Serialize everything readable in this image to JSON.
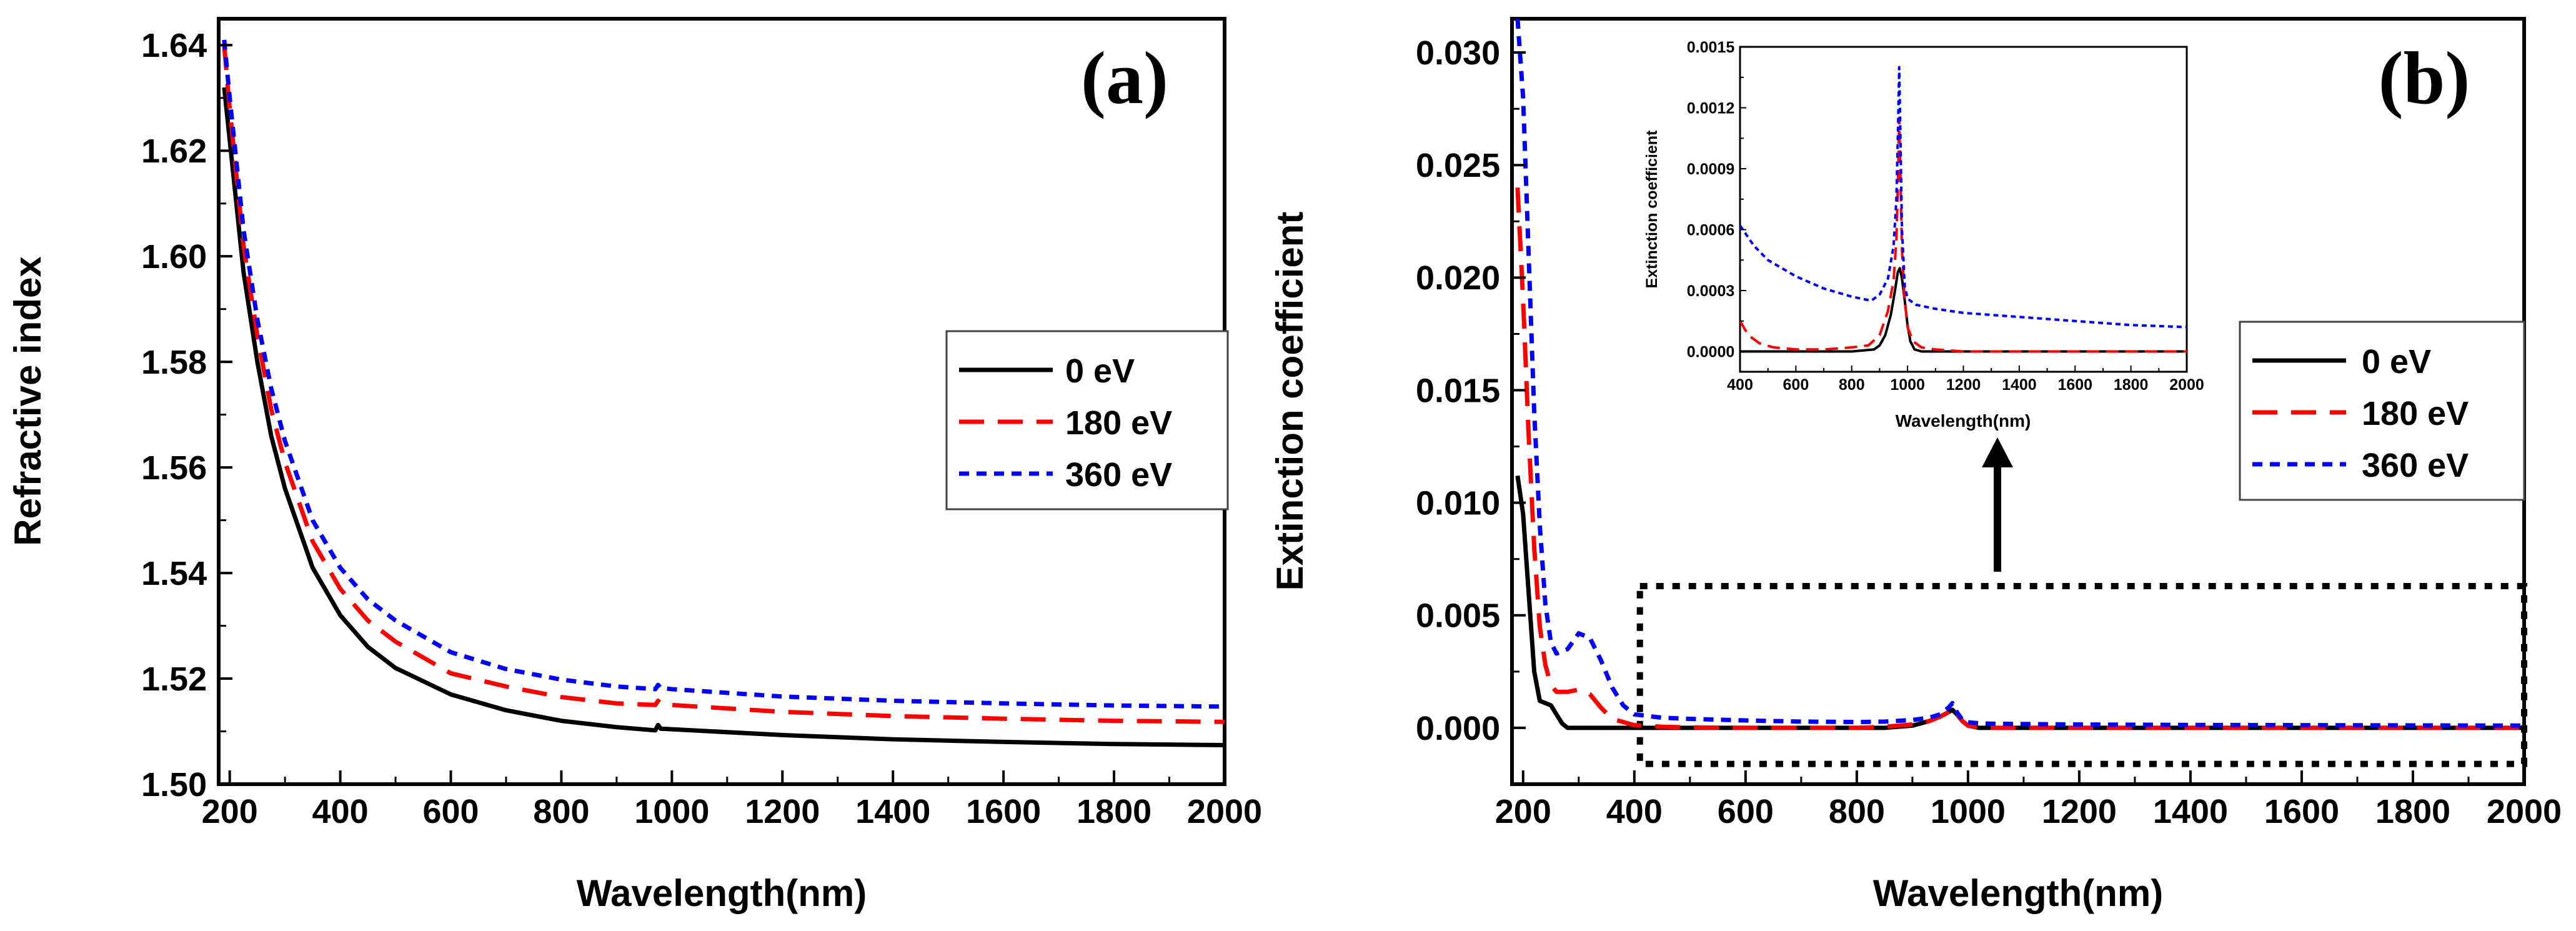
{
  "chart_data": [
    {
      "id": "a",
      "type": "line",
      "panel_label": "(a)",
      "title": "",
      "xlabel": "Wavelength(nm)",
      "ylabel": "Refractive index",
      "xlim": [
        180,
        2000
      ],
      "ylim": [
        1.5,
        1.645
      ],
      "xticks": [
        200,
        400,
        600,
        800,
        1000,
        1200,
        1400,
        1600,
        1800,
        2000
      ],
      "xtick_labels": [
        "200",
        "400",
        "600",
        "800",
        "1000",
        "1200",
        "1400",
        "1600",
        "1800",
        "2000"
      ],
      "yticks": [
        1.5,
        1.52,
        1.54,
        1.56,
        1.58,
        1.6,
        1.62,
        1.64
      ],
      "ytick_labels": [
        "1.50",
        "1.52",
        "1.54",
        "1.56",
        "1.58",
        "1.60",
        "1.62",
        "1.64"
      ],
      "grid": false,
      "legend_position": "right",
      "series": [
        {
          "name": "0 eV",
          "color": "#000000",
          "dash": "solid",
          "x": [
            190,
            200,
            225,
            250,
            275,
            300,
            350,
            400,
            450,
            500,
            600,
            700,
            800,
            900,
            970,
            975,
            980,
            1000,
            1200,
            1400,
            1600,
            1800,
            2000
          ],
          "y": [
            1.632,
            1.622,
            1.597,
            1.58,
            1.566,
            1.556,
            1.541,
            1.532,
            1.526,
            1.522,
            1.517,
            1.514,
            1.512,
            1.5108,
            1.5102,
            1.5112,
            1.5105,
            1.5104,
            1.5093,
            1.5085,
            1.508,
            1.5076,
            1.5074
          ]
        },
        {
          "name": "180 eV",
          "color": "#ff0000",
          "dash": "long-dash",
          "x": [
            190,
            200,
            225,
            250,
            275,
            300,
            350,
            400,
            450,
            500,
            600,
            700,
            800,
            900,
            970,
            975,
            980,
            1000,
            1200,
            1400,
            1600,
            1800,
            2000
          ],
          "y": [
            1.64,
            1.628,
            1.602,
            1.585,
            1.571,
            1.561,
            1.546,
            1.537,
            1.531,
            1.527,
            1.521,
            1.5185,
            1.5165,
            1.5153,
            1.515,
            1.5158,
            1.5152,
            1.515,
            1.5137,
            1.5129,
            1.5124,
            1.512,
            1.5118
          ]
        },
        {
          "name": "360 eV",
          "color": "#0000ff",
          "dash": "short-dash",
          "x": [
            190,
            200,
            225,
            250,
            275,
            300,
            350,
            400,
            450,
            500,
            600,
            700,
            800,
            900,
            970,
            975,
            980,
            1000,
            1200,
            1400,
            1600,
            1800,
            2000
          ],
          "y": [
            1.641,
            1.63,
            1.605,
            1.588,
            1.575,
            1.565,
            1.55,
            1.541,
            1.535,
            1.531,
            1.525,
            1.5218,
            1.5198,
            1.5185,
            1.518,
            1.5188,
            1.5182,
            1.518,
            1.5166,
            1.5158,
            1.5153,
            1.5149,
            1.5147
          ]
        }
      ]
    },
    {
      "id": "b",
      "type": "line",
      "panel_label": "(b)",
      "title": "",
      "xlabel": "Wavelength(nm)",
      "ylabel": "Extinction coefficient",
      "xlim": [
        180,
        2000
      ],
      "ylim": [
        -0.0025,
        0.0315
      ],
      "xticks": [
        200,
        400,
        600,
        800,
        1000,
        1200,
        1400,
        1600,
        1800,
        2000
      ],
      "xtick_labels": [
        "200",
        "400",
        "600",
        "800",
        "1000",
        "1200",
        "1400",
        "1600",
        "1800",
        "2000"
      ],
      "yticks": [
        0.0,
        0.005,
        0.01,
        0.015,
        0.02,
        0.025,
        0.03
      ],
      "ytick_labels": [
        "0.000",
        "0.005",
        "0.010",
        "0.015",
        "0.020",
        "0.025",
        "0.030"
      ],
      "grid": false,
      "legend_position": "right",
      "zoom_region": {
        "x": [
          410,
          2000
        ],
        "y": [
          -0.0016,
          0.0063
        ]
      },
      "series": [
        {
          "name": "0 eV",
          "color": "#000000",
          "dash": "solid",
          "x": [
            190,
            200,
            210,
            220,
            230,
            240,
            250,
            260,
            270,
            280,
            300,
            350,
            400,
            500,
            600,
            700,
            800,
            850,
            900,
            930,
            950,
            965,
            972,
            980,
            990,
            1000,
            1020,
            1050,
            1100,
            1200,
            1400,
            1600,
            1800,
            2000
          ],
          "y": [
            0.0112,
            0.0095,
            0.006,
            0.0025,
            0.0012,
            0.0011,
            0.001,
            0.0006,
            0.0002,
            0.0,
            0.0,
            0.0,
            0.0,
            0.0,
            0.0,
            0.0,
            0.0,
            0.0,
            0.0001,
            0.0003,
            0.0005,
            0.0007,
            0.0008,
            0.0006,
            0.0003,
            0.0001,
            0.0,
            0.0,
            0.0,
            0.0,
            0.0,
            0.0,
            0.0,
            0.0
          ]
        },
        {
          "name": "180 eV",
          "color": "#ff0000",
          "dash": "long-dash",
          "x": [
            190,
            200,
            210,
            220,
            230,
            240,
            250,
            260,
            280,
            300,
            320,
            340,
            360,
            400,
            450,
            500,
            600,
            700,
            800,
            850,
            900,
            930,
            950,
            965,
            972,
            980,
            990,
            1000,
            1020,
            1050,
            1100,
            1200,
            1400,
            1600,
            1800,
            2000
          ],
          "y": [
            0.024,
            0.019,
            0.013,
            0.008,
            0.0045,
            0.0028,
            0.0019,
            0.0016,
            0.0016,
            0.0017,
            0.0015,
            0.0009,
            0.0004,
            0.00012,
            5e-05,
            2e-05,
            0.0,
            0.0,
            0.0,
            5e-05,
            0.00015,
            0.0003,
            0.0005,
            0.0007,
            0.0009,
            0.0006,
            0.0003,
            0.0001,
            2e-05,
            0.0,
            0.0,
            0.0,
            0.0,
            0.0,
            0.0,
            0.0
          ]
        },
        {
          "name": "360 eV",
          "color": "#0000ff",
          "dash": "short-dash",
          "x": [
            190,
            200,
            210,
            220,
            230,
            240,
            250,
            260,
            280,
            300,
            320,
            340,
            360,
            380,
            400,
            450,
            500,
            600,
            700,
            800,
            850,
            900,
            930,
            950,
            965,
            972,
            980,
            990,
            1000,
            1020,
            1050,
            1100,
            1200,
            1400,
            1600,
            1800,
            2000
          ],
          "y": [
            0.0315,
            0.028,
            0.021,
            0.014,
            0.009,
            0.0055,
            0.0038,
            0.0033,
            0.0035,
            0.0042,
            0.004,
            0.003,
            0.0018,
            0.001,
            0.0006,
            0.00045,
            0.0004,
            0.00033,
            0.00028,
            0.00026,
            0.00028,
            0.00035,
            0.00045,
            0.0006,
            0.0009,
            0.0011,
            0.0007,
            0.00035,
            0.00025,
            0.0002,
            0.00018,
            0.00017,
            0.00015,
            0.00013,
            0.00012,
            0.00011,
            0.0001
          ]
        }
      ]
    },
    {
      "id": "b-inset",
      "type": "line",
      "panel_label": "",
      "title": "",
      "xlabel": "Wavelength(nm)",
      "ylabel": "Extinction coefficient",
      "xlim": [
        400,
        2000
      ],
      "ylim": [
        -0.0001,
        0.0015
      ],
      "xticks": [
        400,
        600,
        800,
        1000,
        1200,
        1400,
        1600,
        1800,
        2000
      ],
      "xtick_labels": [
        "400",
        "600",
        "800",
        "1000",
        "1200",
        "1400",
        "1600",
        "1800",
        "2000"
      ],
      "yticks": [
        0.0,
        0.0003,
        0.0006,
        0.0009,
        0.0012,
        0.0015
      ],
      "ytick_labels": [
        "0.0000",
        "0.0003",
        "0.0006",
        "0.0009",
        "0.0012",
        "0.0015"
      ],
      "grid": false,
      "legend_position": "none",
      "series": [
        {
          "name": "0 eV",
          "color": "#000000",
          "dash": "solid",
          "x": [
            400,
            800,
            880,
            900,
            920,
            940,
            955,
            965,
            972,
            980,
            990,
            1000,
            1010,
            1025,
            1050,
            1100,
            2000
          ],
          "y": [
            0.0,
            0.0,
            1e-05,
            3e-05,
            8e-05,
            0.00018,
            0.0003,
            0.00039,
            0.00041,
            0.00036,
            0.00025,
            0.00013,
            5e-05,
            1e-05,
            0.0,
            0.0,
            0.0
          ]
        },
        {
          "name": "180 eV",
          "color": "#ff0000",
          "dash": "long-dash",
          "x": [
            400,
            430,
            470,
            520,
            600,
            700,
            800,
            860,
            900,
            930,
            950,
            960,
            966,
            970,
            974,
            980,
            990,
            1000,
            1020,
            1050,
            1100,
            1200,
            2000
          ],
          "y": [
            0.00015,
            8e-05,
            4e-05,
            2e-05,
            1e-05,
            1e-05,
            2e-05,
            3e-05,
            8e-05,
            0.0002,
            0.00035,
            0.00055,
            0.00085,
            0.00115,
            0.0009,
            0.0005,
            0.00025,
            0.00012,
            5e-05,
            2e-05,
            1e-05,
            0.0,
            0.0
          ]
        },
        {
          "name": "360 eV",
          "color": "#0000ff",
          "dash": "short-dash",
          "x": [
            400,
            450,
            500,
            600,
            700,
            800,
            870,
            900,
            930,
            950,
            960,
            966,
            970,
            974,
            980,
            990,
            1000,
            1030,
            1100,
            1200,
            1400,
            1600,
            1800,
            2000
          ],
          "y": [
            0.00062,
            0.00052,
            0.00045,
            0.00037,
            0.00031,
            0.00027,
            0.00025,
            0.00028,
            0.00036,
            0.00052,
            0.00075,
            0.0011,
            0.0014,
            0.0011,
            0.0006,
            0.00032,
            0.00026,
            0.00023,
            0.00021,
            0.00019,
            0.00017,
            0.00015,
            0.00013,
            0.00012
          ]
        }
      ]
    }
  ]
}
